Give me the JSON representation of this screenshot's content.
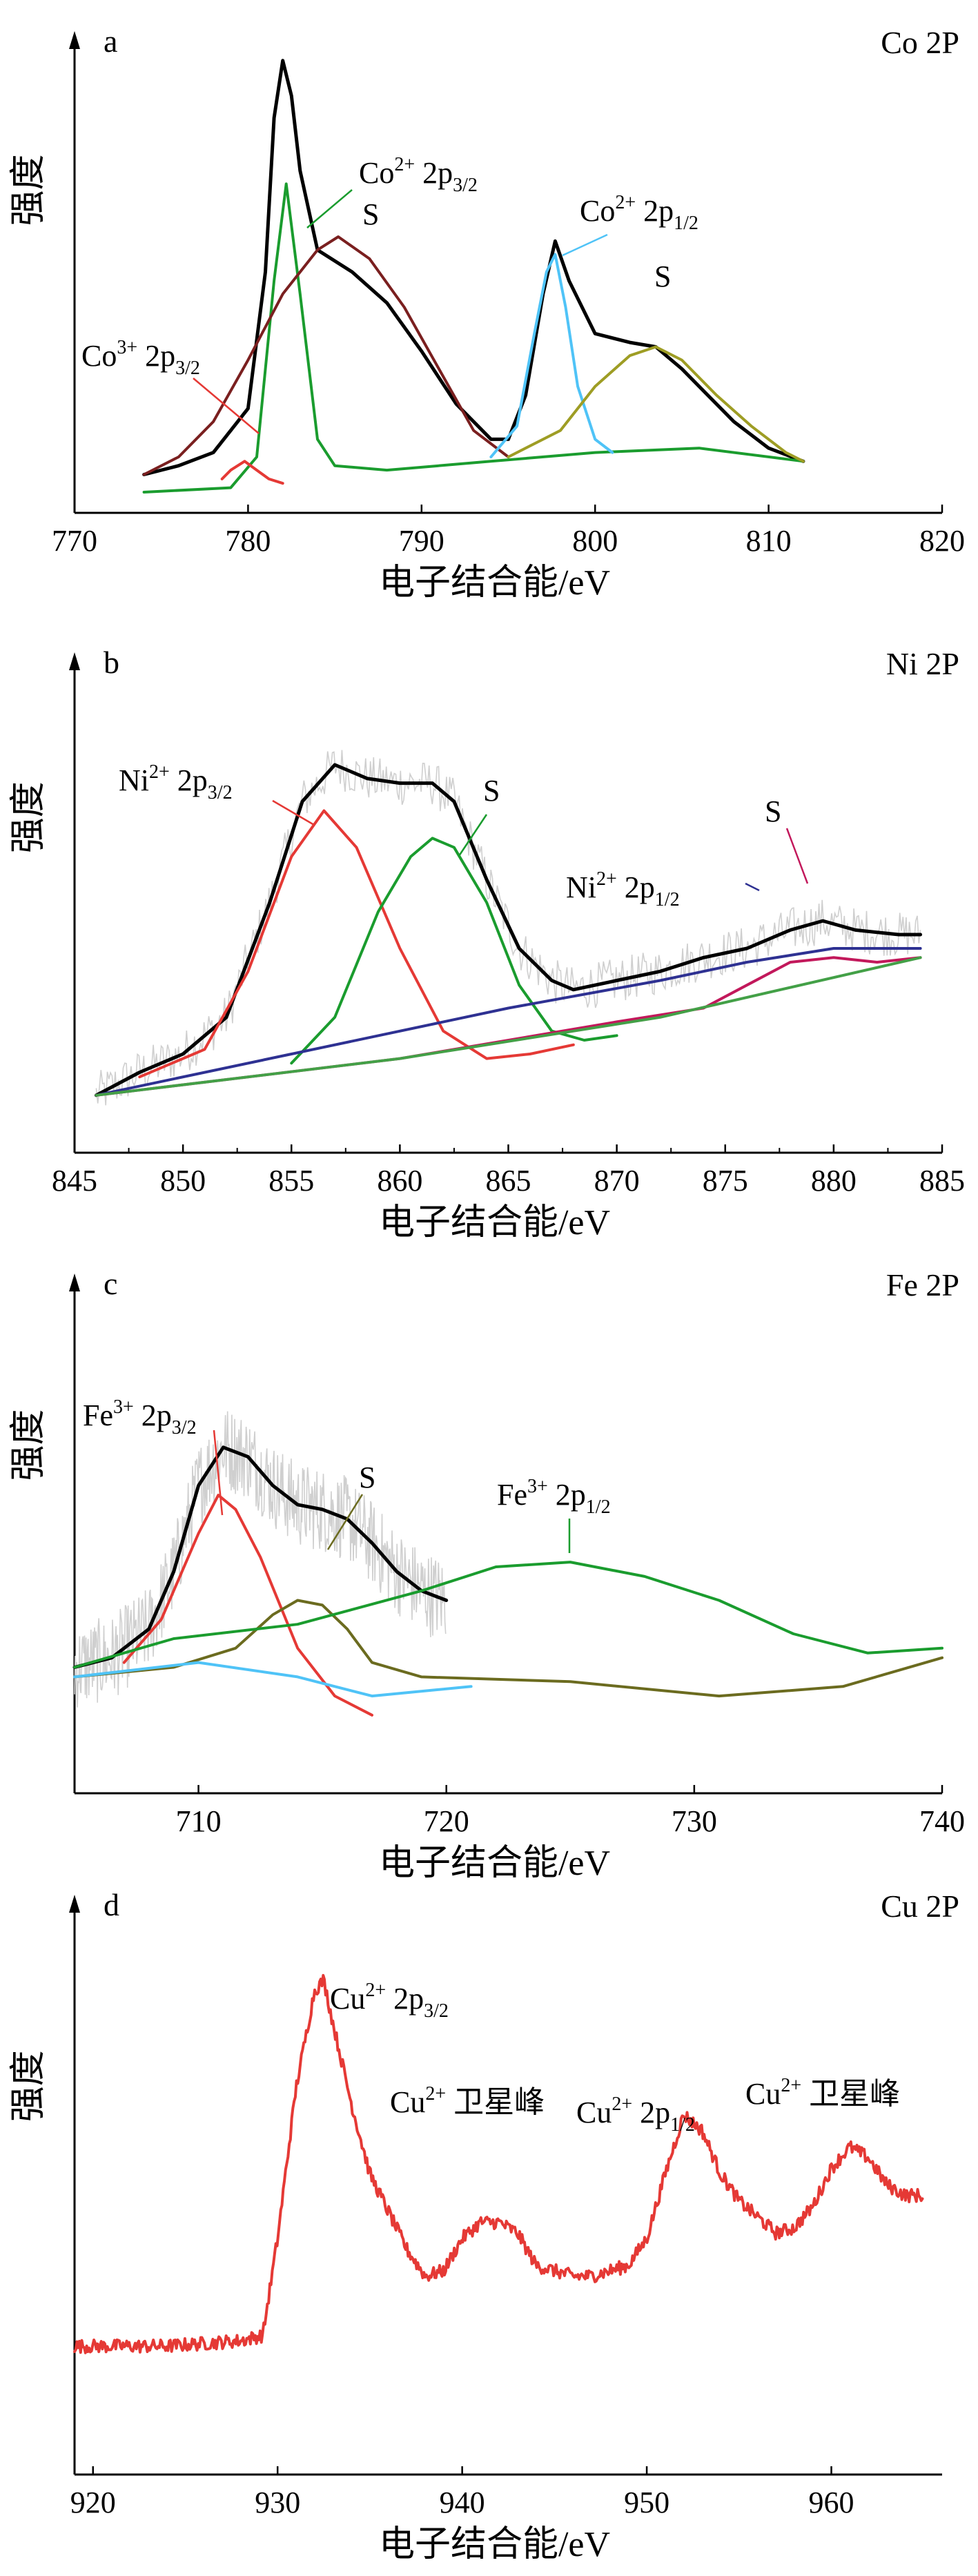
{
  "panels": [
    {
      "letter": "a",
      "element": "Co 2P",
      "ylabel": "强度",
      "xlabel": "电子结合能/eV",
      "ticks": [
        "770",
        "780",
        "790",
        "800",
        "810",
        "820"
      ],
      "annotations": [
        {
          "base": "Co",
          "sup": "2+",
          "main": " 2p",
          "sub": "3/2"
        },
        {
          "base": "S",
          "sup": "",
          "main": "",
          "sub": ""
        },
        {
          "base": "Co",
          "sup": "2+",
          "main": " 2p",
          "sub": "1/2"
        },
        {
          "base": "S",
          "sup": "",
          "main": "",
          "sub": ""
        },
        {
          "base": "Co",
          "sup": "3+",
          "main": " 2p",
          "sub": "3/2"
        }
      ]
    },
    {
      "letter": "b",
      "element": "Ni 2P",
      "ylabel": "强度",
      "xlabel": "电子结合能/eV",
      "ticks": [
        "845",
        "850",
        "855",
        "860",
        "865",
        "870",
        "875",
        "880",
        "885"
      ],
      "annotations": [
        {
          "base": "Ni",
          "sup": "2+",
          "main": " 2p",
          "sub": "3/2"
        },
        {
          "base": "S",
          "sup": "",
          "main": "",
          "sub": ""
        },
        {
          "base": "Ni",
          "sup": "2+",
          "main": " 2p",
          "sub": "1/2"
        },
        {
          "base": "S",
          "sup": "",
          "main": "",
          "sub": ""
        }
      ]
    },
    {
      "letter": "c",
      "element": "Fe 2P",
      "ylabel": "强度",
      "xlabel": "电子结合能/eV",
      "ticks": [
        "710",
        "720",
        "730",
        "740"
      ],
      "annotations": [
        {
          "base": "Fe",
          "sup": "3+",
          "main": " 2p",
          "sub": "3/2"
        },
        {
          "base": "S",
          "sup": "",
          "main": "",
          "sub": ""
        },
        {
          "base": "Fe",
          "sup": "3+",
          "main": " 2p",
          "sub": "1/2"
        }
      ]
    },
    {
      "letter": "d",
      "element": "Cu 2P",
      "ylabel": "强度",
      "xlabel": "电子结合能/eV",
      "ticks": [
        "920",
        "930",
        "940",
        "950",
        "960"
      ],
      "annotations": [
        {
          "base": "Cu",
          "sup": "2+",
          "main": " 2p",
          "sub": "3/2"
        },
        {
          "base": "Cu",
          "sup": "2+",
          "main": " 卫星峰",
          "sub": ""
        },
        {
          "base": "Cu",
          "sup": "2+",
          "main": " 2p",
          "sub": "1/2"
        },
        {
          "base": "Cu",
          "sup": "2+",
          "main": " 卫星峰",
          "sub": ""
        }
      ]
    }
  ],
  "chart_data": [
    {
      "type": "line",
      "title": "Co 2P",
      "xlabel": "电子结合能/eV",
      "ylabel": "强度",
      "xlim": [
        770,
        820
      ],
      "ylim": [
        0,
        1
      ],
      "series": [
        {
          "name": "",
          "color": "#000000",
          "x": [
            774,
            776,
            778,
            780,
            781,
            781.5,
            782,
            782.5,
            783,
            784,
            786,
            788,
            790,
            792,
            794,
            795,
            796,
            797,
            797.7,
            798.5,
            800,
            802,
            803.5,
            805,
            808,
            810,
            812
          ],
          "y": [
            0.04,
            0.06,
            0.09,
            0.19,
            0.5,
            0.85,
            0.98,
            0.9,
            0.73,
            0.55,
            0.5,
            0.43,
            0.32,
            0.2,
            0.12,
            0.12,
            0.22,
            0.45,
            0.57,
            0.48,
            0.36,
            0.34,
            0.33,
            0.28,
            0.16,
            0.1,
            0.07
          ]
        },
        {
          "name": "",
          "color": "#1a9c2e",
          "x": [
            774,
            779,
            780.5,
            781.5,
            782.2,
            783,
            784,
            785,
            788,
            794,
            800,
            806,
            812
          ],
          "y": [
            0.0,
            0.01,
            0.08,
            0.48,
            0.7,
            0.45,
            0.12,
            0.06,
            0.05,
            0.07,
            0.09,
            0.1,
            0.07
          ]
        },
        {
          "name": "",
          "color": "#7a1f1f",
          "x": [
            774,
            776,
            778,
            780,
            782,
            784,
            785.2,
            787,
            789,
            791,
            793,
            795
          ],
          "y": [
            0.04,
            0.08,
            0.16,
            0.3,
            0.45,
            0.55,
            0.58,
            0.53,
            0.42,
            0.28,
            0.14,
            0.08
          ]
        },
        {
          "name": "",
          "color": "#e53935",
          "x": [
            778.5,
            779,
            779.8,
            780.5,
            781.2,
            782
          ],
          "y": [
            0.03,
            0.05,
            0.07,
            0.05,
            0.03,
            0.02
          ]
        },
        {
          "name": "",
          "color": "#4fc3f7",
          "x": [
            794,
            795.5,
            796.5,
            797.2,
            797.7,
            798.3,
            799,
            800,
            801
          ],
          "y": [
            0.08,
            0.15,
            0.36,
            0.5,
            0.54,
            0.42,
            0.24,
            0.12,
            0.09
          ]
        },
        {
          "name": "",
          "color": "#9e9d24",
          "x": [
            795,
            798,
            800,
            802,
            803.5,
            805,
            807,
            809,
            811,
            812
          ],
          "y": [
            0.08,
            0.14,
            0.24,
            0.31,
            0.33,
            0.3,
            0.22,
            0.15,
            0.09,
            0.07
          ]
        }
      ]
    },
    {
      "type": "line",
      "title": "Ni 2P",
      "xlabel": "电子结合能/eV",
      "ylabel": "强度",
      "xlim": [
        845,
        885
      ],
      "ylim": [
        0,
        1
      ],
      "series": [
        {
          "name": "",
          "color": "#000000",
          "x": [
            846,
            848,
            850,
            852,
            854,
            855.5,
            857,
            858.5,
            860,
            861.5,
            862.5,
            864,
            865.5,
            867,
            868,
            870,
            872,
            874,
            876,
            878,
            879.5,
            881,
            883,
            884
          ],
          "y": [
            0.08,
            0.13,
            0.17,
            0.25,
            0.5,
            0.72,
            0.8,
            0.77,
            0.76,
            0.76,
            0.72,
            0.55,
            0.4,
            0.33,
            0.31,
            0.33,
            0.35,
            0.38,
            0.4,
            0.44,
            0.46,
            0.44,
            0.43,
            0.43
          ]
        },
        {
          "name": "",
          "color": "#e53935",
          "x": [
            848,
            851,
            853,
            855,
            856.5,
            858,
            860,
            862,
            864,
            866,
            868
          ],
          "y": [
            0.12,
            0.18,
            0.35,
            0.6,
            0.7,
            0.62,
            0.4,
            0.22,
            0.16,
            0.17,
            0.19
          ]
        },
        {
          "name": "",
          "color": "#1a9c2e",
          "x": [
            855,
            857,
            859,
            860.5,
            861.5,
            862.5,
            864,
            865.5,
            867,
            868.5,
            870
          ],
          "y": [
            0.15,
            0.25,
            0.48,
            0.6,
            0.64,
            0.62,
            0.5,
            0.32,
            0.22,
            0.2,
            0.21
          ]
        },
        {
          "name": "",
          "color": "#2e3192",
          "x": [
            846,
            855,
            865,
            872,
            876,
            880,
            884
          ],
          "y": [
            0.08,
            0.17,
            0.27,
            0.33,
            0.37,
            0.4,
            0.4
          ]
        },
        {
          "name": "",
          "color": "#c2185b",
          "x": [
            846,
            860,
            870,
            874,
            876,
            878,
            880,
            882,
            884
          ],
          "y": [
            0.08,
            0.16,
            0.24,
            0.27,
            0.32,
            0.37,
            0.38,
            0.37,
            0.38
          ]
        },
        {
          "name": "",
          "color": "#43a047",
          "x": [
            846,
            860,
            872,
            884
          ],
          "y": [
            0.08,
            0.16,
            0.25,
            0.38
          ]
        }
      ]
    },
    {
      "type": "line",
      "title": "Fe 2P",
      "xlabel": "电子结合能/eV",
      "ylabel": "强度",
      "xlim": [
        705,
        740
      ],
      "ylim": [
        0,
        1
      ],
      "series": [
        {
          "name": "",
          "color": "#000000",
          "x": [
            705,
            706.5,
            708,
            709,
            710,
            711,
            712,
            713,
            714,
            715,
            716,
            717,
            718,
            719,
            720
          ],
          "y": [
            0.22,
            0.24,
            0.3,
            0.42,
            0.6,
            0.68,
            0.66,
            0.6,
            0.56,
            0.55,
            0.53,
            0.48,
            0.42,
            0.38,
            0.36
          ]
        },
        {
          "name": "",
          "color": "#e53935",
          "x": [
            707,
            708.5,
            710,
            710.8,
            711.5,
            712.5,
            714,
            715.5,
            717
          ],
          "y": [
            0.23,
            0.32,
            0.5,
            0.58,
            0.55,
            0.45,
            0.26,
            0.16,
            0.12
          ]
        },
        {
          "name": "",
          "color": "#6b6b1f",
          "x": [
            705,
            709,
            711.5,
            713,
            714,
            715,
            716,
            717,
            719,
            725,
            731,
            736,
            740
          ],
          "y": [
            0.2,
            0.22,
            0.26,
            0.33,
            0.36,
            0.35,
            0.3,
            0.23,
            0.2,
            0.19,
            0.16,
            0.18,
            0.24
          ]
        },
        {
          "name": "",
          "color": "#4fc3f7",
          "x": [
            705,
            710,
            714,
            717,
            721
          ],
          "y": [
            0.2,
            0.23,
            0.2,
            0.16,
            0.18
          ]
        },
        {
          "name": "",
          "color": "#1a9c2e",
          "x": [
            705,
            709,
            714,
            719,
            722,
            725,
            728,
            731,
            734,
            737,
            740
          ],
          "y": [
            0.22,
            0.28,
            0.31,
            0.38,
            0.43,
            0.44,
            0.41,
            0.36,
            0.29,
            0.25,
            0.26
          ]
        }
      ]
    },
    {
      "type": "line",
      "title": "Cu 2P",
      "xlabel": "电子结合能/eV",
      "ylabel": "强度",
      "xlim": [
        919,
        966
      ],
      "ylim": [
        0,
        1
      ],
      "series": [
        {
          "name": "",
          "color": "#e53935",
          "x": [
            919,
            924,
            928,
            929.2,
            930,
            931,
            932,
            932.5,
            933,
            934,
            935,
            936,
            937,
            938,
            939,
            940,
            941,
            942,
            943,
            944,
            945,
            946,
            947,
            948,
            949,
            950,
            951,
            952,
            953,
            954,
            955,
            956,
            957,
            958,
            959,
            960,
            961,
            962,
            963,
            964,
            965
          ],
          "y": [
            0.2,
            0.2,
            0.21,
            0.22,
            0.4,
            0.68,
            0.86,
            0.88,
            0.8,
            0.65,
            0.52,
            0.45,
            0.38,
            0.33,
            0.34,
            0.4,
            0.43,
            0.43,
            0.41,
            0.35,
            0.34,
            0.33,
            0.33,
            0.34,
            0.35,
            0.4,
            0.52,
            0.63,
            0.6,
            0.52,
            0.47,
            0.44,
            0.41,
            0.42,
            0.46,
            0.53,
            0.57,
            0.55,
            0.5,
            0.48,
            0.48
          ]
        }
      ]
    }
  ]
}
